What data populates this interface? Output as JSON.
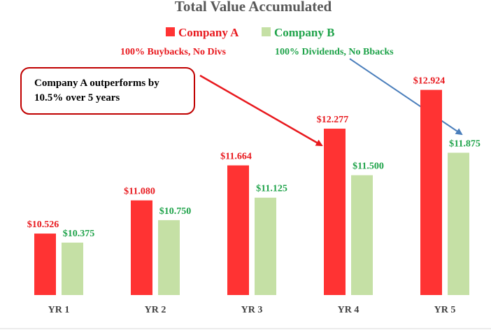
{
  "chart_data": {
    "type": "bar",
    "title": "Total Value Accumulated",
    "categories": [
      "YR 1",
      "YR 2",
      "YR 3",
      "YR 4",
      "YR 5"
    ],
    "series": [
      {
        "name": "Company A",
        "description": "100% Buybacks, No Divs",
        "values": [
          10.526,
          11.08,
          11.664,
          12.277,
          12.924
        ],
        "labels": [
          "$10.526",
          "$11.080",
          "$11.664",
          "$12.277",
          "$12.924"
        ],
        "color": "#ff3333",
        "label_color": "#e8191e"
      },
      {
        "name": "Company B",
        "description": "100% Dividends, No Bbacks",
        "values": [
          10.375,
          10.75,
          11.125,
          11.5,
          11.875
        ],
        "labels": [
          "$10.375",
          "$10.750",
          "$11.125",
          "$11.500",
          "$11.875"
        ],
        "color": "#c5e0a5",
        "label_color": "#1fa34a"
      }
    ],
    "annotation": "Company A outperforms by 10.5% over 5 years",
    "ylim": [
      9.5,
      13.3
    ],
    "grid": false,
    "legend_position": "top-center"
  },
  "colors": {
    "callout_border": "#c00000",
    "arrow_a": "#e8191e",
    "arrow_b": "#4a7ebb",
    "baseline": "#d9d9d9"
  }
}
